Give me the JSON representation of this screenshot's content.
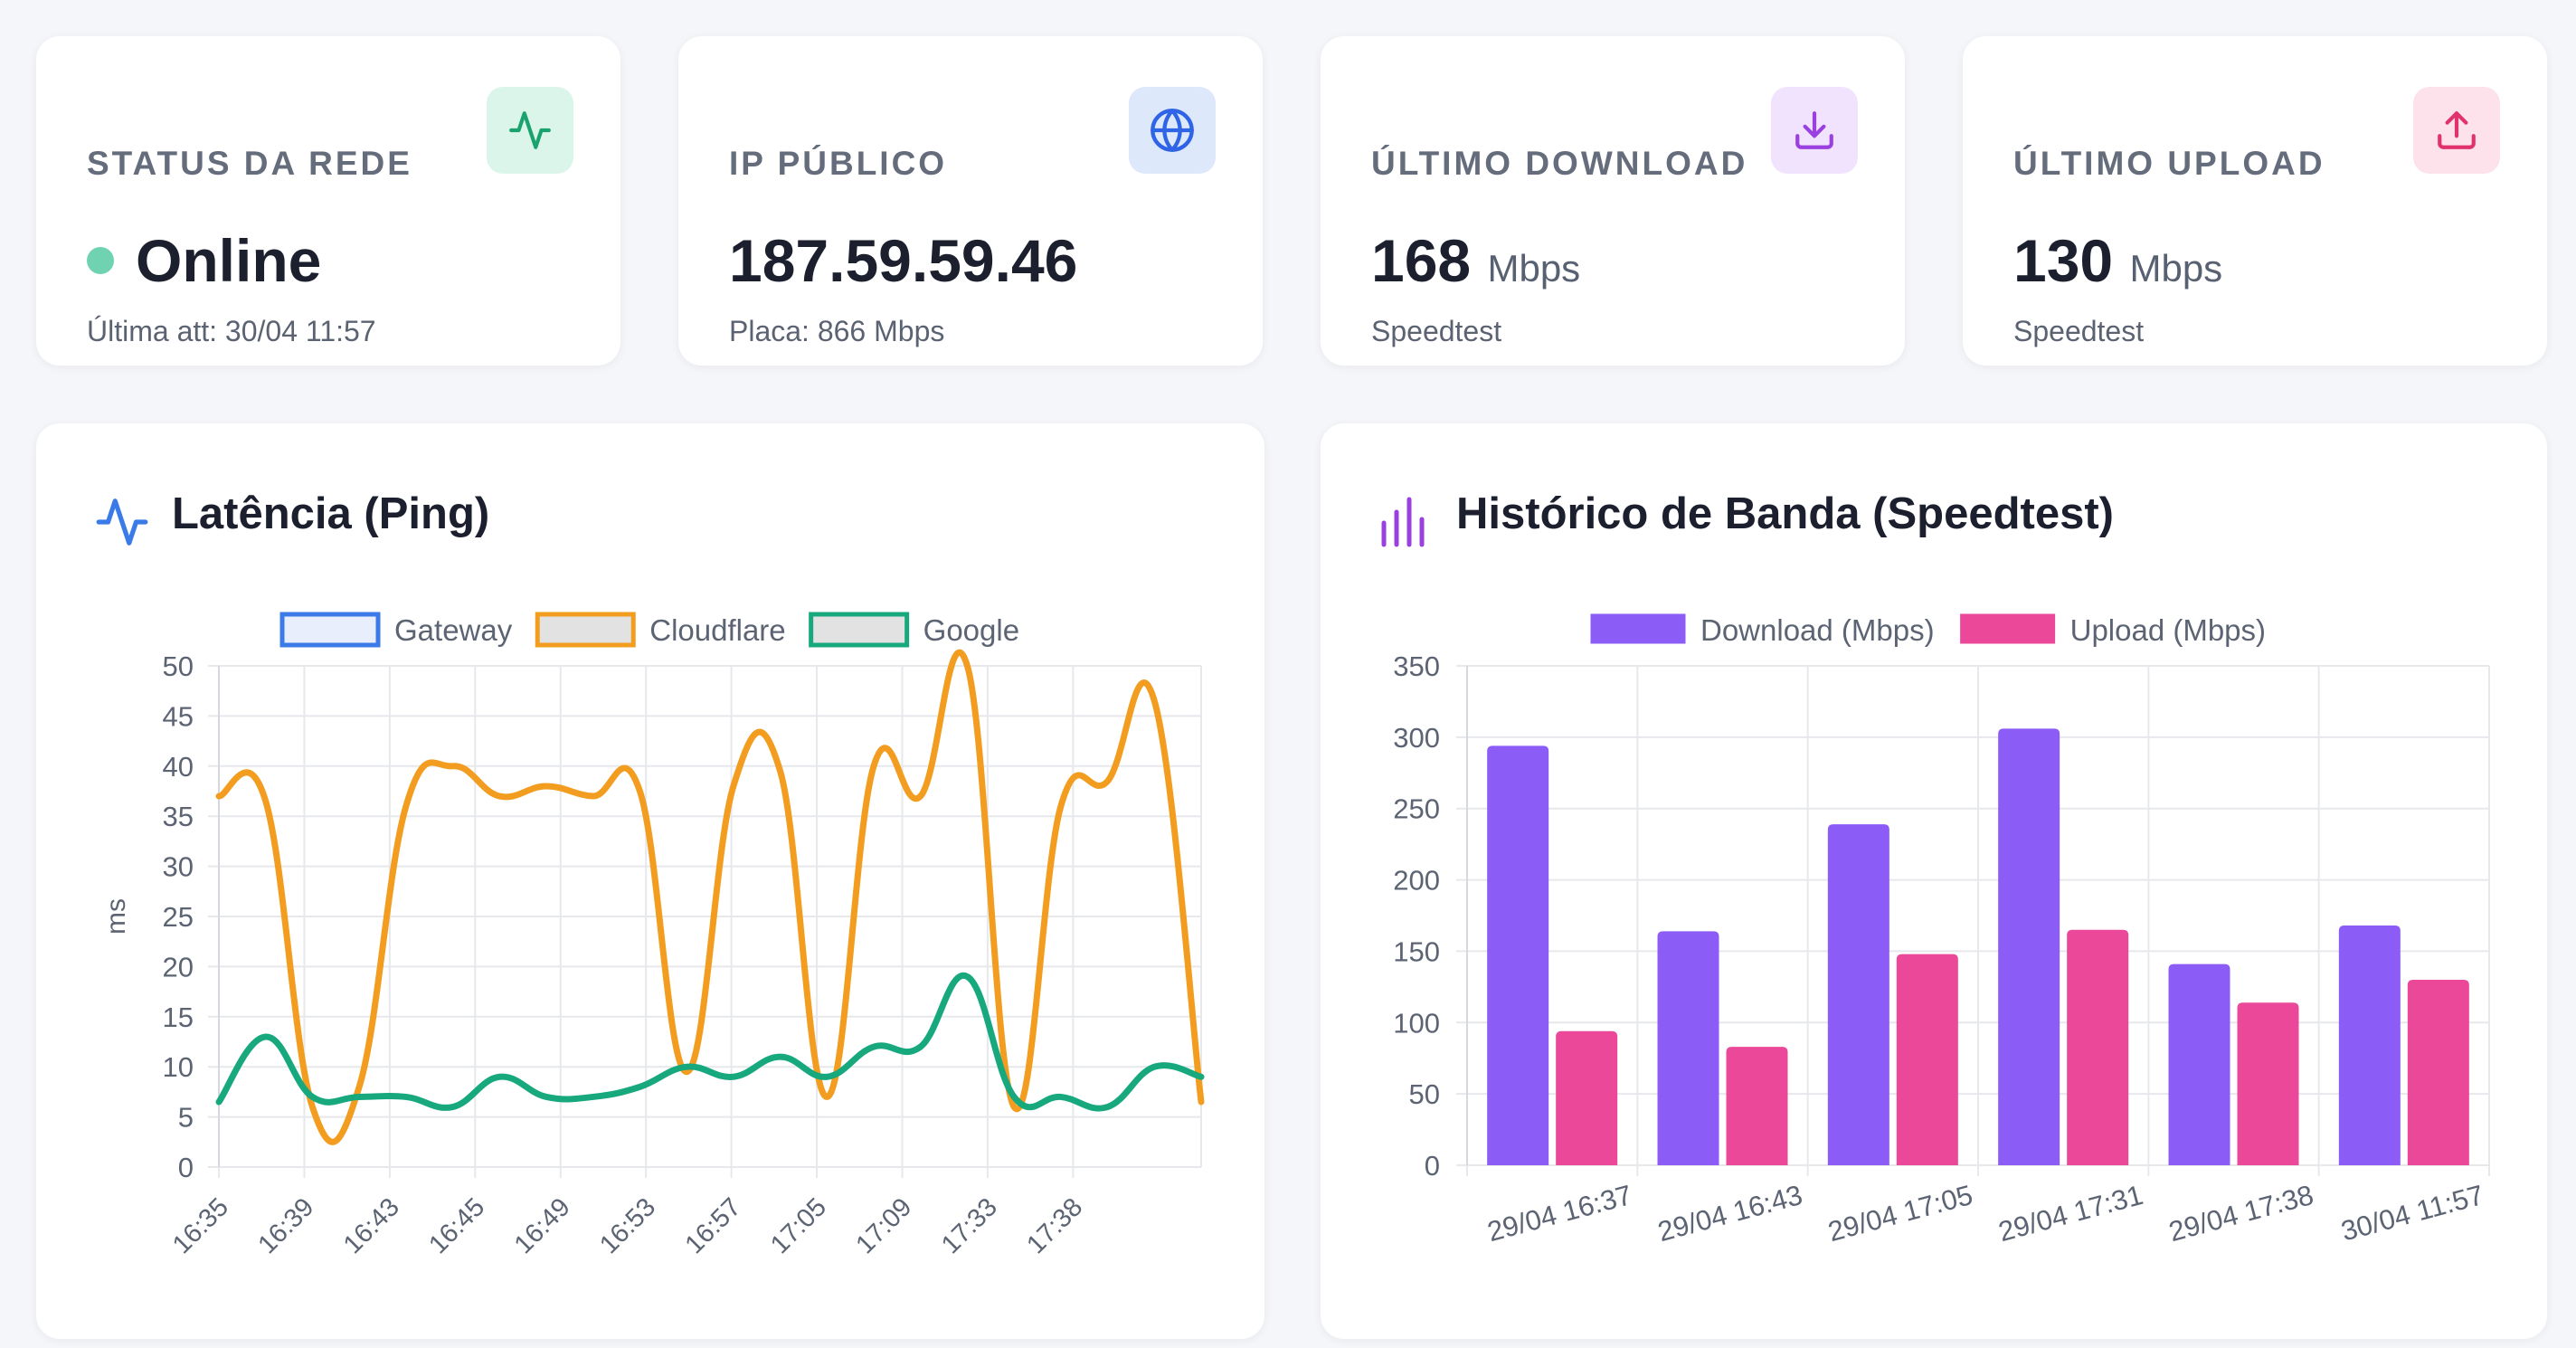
{
  "stats": [
    {
      "title": "STATUS DA REDE",
      "value": "Online",
      "unit": "",
      "sub": "Última att: 30/04 11:57",
      "icon": "activity-icon",
      "icon_bg": "#dcf5ea",
      "icon_color": "#1aa36f"
    },
    {
      "title": "IP PÚBLICO",
      "value": "187.59.59.46",
      "unit": "",
      "sub": "Placa: 866 Mbps",
      "icon": "globe-icon",
      "icon_bg": "#dde8fb",
      "icon_color": "#2f64e6"
    },
    {
      "title": "ÚLTIMO DOWNLOAD",
      "value": "168",
      "unit": "Mbps",
      "sub": "Speedtest",
      "icon": "download-icon",
      "icon_bg": "#f1e3fd",
      "icon_color": "#9a3fe0"
    },
    {
      "title": "ÚLTIMO UPLOAD",
      "value": "130",
      "unit": "Mbps",
      "sub": "Speedtest",
      "icon": "upload-icon",
      "icon_bg": "#fde2ec",
      "icon_color": "#e0336e"
    }
  ],
  "latency_card": {
    "title": "Latência (Ping)",
    "icon": "activity-icon"
  },
  "bandwidth_card": {
    "title": "Histórico de Banda (Speedtest)",
    "icon": "bar-chart-icon"
  },
  "chart_data": [
    {
      "type": "line",
      "title": "Latência (Ping)",
      "ylabel": "ms",
      "xlabel": "",
      "ylim": [
        0,
        50
      ],
      "yticks": [
        0,
        5,
        10,
        15,
        20,
        25,
        30,
        35,
        40,
        45,
        50
      ],
      "grid": true,
      "legend_position": "top",
      "x_tick_labels": [
        "16:35",
        "16:39",
        "16:43",
        "16:45",
        "16:49",
        "16:53",
        "16:57",
        "17:05",
        "17:09",
        "17:33",
        "17:38"
      ],
      "series": [
        {
          "name": "Gateway",
          "color": "#3b7be8",
          "fill": "#e8eefb",
          "values": []
        },
        {
          "name": "Cloudflare",
          "color": "#f29d1f",
          "fill": "#e2e2e2",
          "values": [
            37,
            36.5,
            6,
            8,
            36,
            40,
            37,
            38,
            37,
            37.5,
            9.5,
            38,
            39.5,
            7,
            40,
            37,
            50,
            6,
            36,
            38.5,
            46.5,
            6.5
          ]
        },
        {
          "name": "Google",
          "color": "#18a87d",
          "fill": "#e2e2e2",
          "values": [
            6.5,
            13,
            7,
            7,
            7,
            6,
            9,
            7,
            7,
            8,
            10,
            9,
            11,
            9,
            12,
            12,
            19,
            7,
            7,
            6,
            10,
            9
          ]
        }
      ]
    },
    {
      "type": "bar",
      "title": "Histórico de Banda (Speedtest)",
      "xlabel": "",
      "ylabel": "",
      "ylim": [
        0,
        350
      ],
      "yticks": [
        0,
        50,
        100,
        150,
        200,
        250,
        300,
        350
      ],
      "grid": true,
      "legend_position": "top",
      "categories": [
        "29/04 16:37",
        "29/04 16:43",
        "29/04 17:05",
        "29/04 17:31",
        "29/04 17:38",
        "30/04 11:57"
      ],
      "series": [
        {
          "name": "Download (Mbps)",
          "color": "#8b5cf6",
          "values": [
            294,
            164,
            239,
            306,
            141,
            168
          ]
        },
        {
          "name": "Upload (Mbps)",
          "color": "#ec4899",
          "values": [
            94,
            83,
            148,
            165,
            114,
            130
          ]
        }
      ]
    }
  ]
}
